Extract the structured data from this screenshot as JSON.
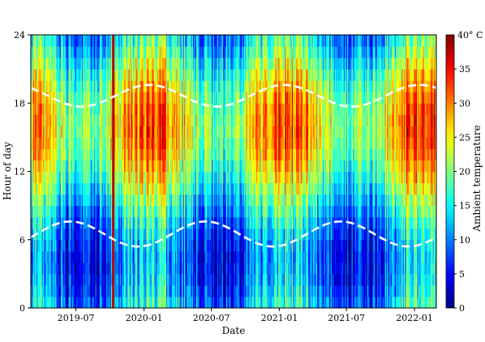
{
  "chart_data": {
    "type": "heatmap",
    "xlabel": "Date",
    "ylabel": "Hour of day",
    "x_range": [
      "2019-03-01",
      "2022-03-01"
    ],
    "y_range": [
      0,
      24
    ],
    "x_ticks": [
      "2019-07",
      "2020-01",
      "2020-07",
      "2021-01",
      "2021-07",
      "2022-01"
    ],
    "x_tick_dates": [
      "2019-07-01",
      "2020-01-01",
      "2020-07-01",
      "2021-01-01",
      "2021-07-01",
      "2022-01-01"
    ],
    "y_ticks": [
      0,
      6,
      12,
      18,
      24
    ],
    "colorbar": {
      "label": "Ambient temperature",
      "range": [
        0,
        40
      ],
      "ticks": [
        0,
        5,
        10,
        15,
        20,
        25,
        30,
        35
      ],
      "top_tick_label": "40° C",
      "colormap": "jet"
    },
    "seasonal_pattern": {
      "peak_month_date": "2020-01-15",
      "summer_afternoon_max": 33,
      "winter_afternoon_max": 19,
      "night_min_summer": 14,
      "night_min_winter": 4
    },
    "anomaly_lines": [
      {
        "date": "2019-10-10",
        "value": 38
      }
    ],
    "overlays": [
      {
        "name": "sunset",
        "style": "white-dashed",
        "hour_min": 17.7,
        "hour_max": 19.6,
        "max_date": "2020-01-15"
      },
      {
        "name": "sunrise",
        "style": "white-dashed",
        "hour_min": 5.4,
        "hour_max": 7.6,
        "max_date": "2020-06-15"
      }
    ],
    "grid": false
  }
}
